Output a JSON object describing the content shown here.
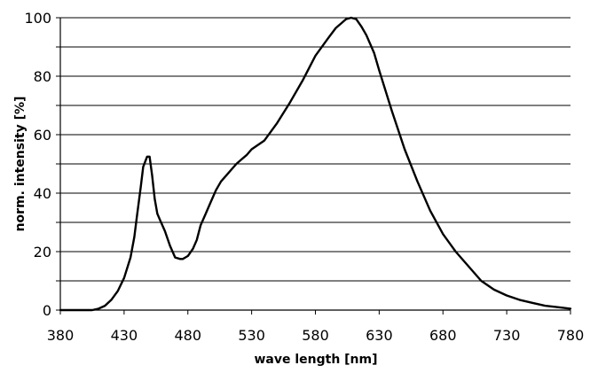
{
  "chart_data": {
    "type": "line",
    "title": "",
    "xlabel": "wave length [nm]",
    "ylabel": "norm. intensity [%]",
    "xlim": [
      380,
      780
    ],
    "ylim": [
      0,
      100
    ],
    "x_ticks": [
      380,
      430,
      480,
      530,
      580,
      630,
      680,
      730,
      780
    ],
    "y_ticks": [
      0,
      20,
      40,
      60,
      80,
      100
    ],
    "grid": true,
    "legend": "none",
    "line_color": "#000000",
    "series": [
      {
        "x": [
          380,
          390,
          400,
          405,
          410,
          415,
          420,
          425,
          430,
          435,
          438,
          440,
          443,
          445,
          448,
          450,
          452,
          454,
          456,
          458,
          462,
          466,
          470,
          474,
          476,
          478,
          480,
          484,
          487,
          490,
          494,
          498,
          502,
          506,
          510,
          514,
          518,
          522,
          526,
          530,
          540,
          550,
          560,
          570,
          580,
          590,
          596,
          600,
          604,
          608,
          612,
          616,
          620,
          626,
          630,
          640,
          650,
          660,
          670,
          680,
          690,
          700,
          710,
          720,
          730,
          740,
          750,
          760,
          770,
          780
        ],
        "y": [
          0,
          0,
          0,
          0,
          0.5,
          1.5,
          3.5,
          6.5,
          11,
          18,
          25,
          32,
          42,
          49,
          52.5,
          52.5,
          46,
          38,
          33,
          31,
          27,
          22,
          18,
          17.5,
          17.5,
          18,
          18.5,
          21,
          24,
          29,
          33,
          37,
          41,
          44,
          46,
          48,
          50,
          51.5,
          53,
          55,
          58,
          64,
          71,
          78.5,
          87,
          93,
          96.5,
          98,
          99.5,
          100,
          99.5,
          97,
          94,
          88,
          82,
          68,
          55,
          44,
          34,
          26,
          20,
          15,
          10,
          7,
          5,
          3.5,
          2.5,
          1.5,
          1,
          0.5
        ]
      }
    ]
  }
}
